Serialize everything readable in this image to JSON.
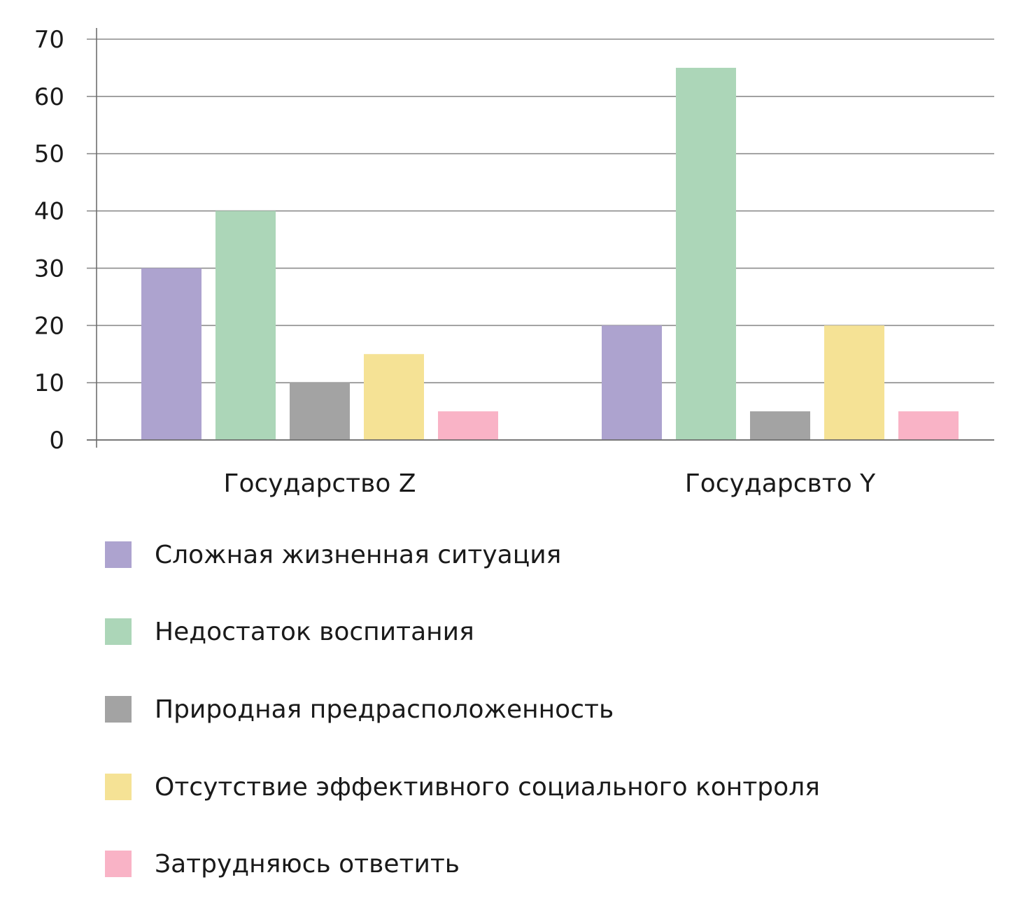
{
  "chart_data": {
    "type": "bar",
    "categories": [
      "Государство Z",
      "Государсвто Y"
    ],
    "series": [
      {
        "name": "Сложная жизненная ситуация",
        "color": "#ada3cf",
        "values": [
          30,
          20
        ]
      },
      {
        "name": "Недостаток воспитания",
        "color": "#acd6b8",
        "values": [
          40,
          65
        ]
      },
      {
        "name": "Природная предрасположенность",
        "color": "#a3a3a3",
        "values": [
          10,
          5
        ]
      },
      {
        "name": "Отсутствие эффективного социального контроля",
        "color": "#f5e295",
        "values": [
          15,
          20
        ]
      },
      {
        "name": "Затрудняюсь ответить",
        "color": "#f9b3c6",
        "values": [
          5,
          5
        ]
      }
    ],
    "ylim": [
      0,
      70
    ],
    "yticks": [
      "0",
      "10",
      "20",
      "30",
      "40",
      "50",
      "60",
      "70"
    ],
    "grid": true,
    "legend_position": "bottom",
    "gridline_color": "#8c8c8c"
  }
}
